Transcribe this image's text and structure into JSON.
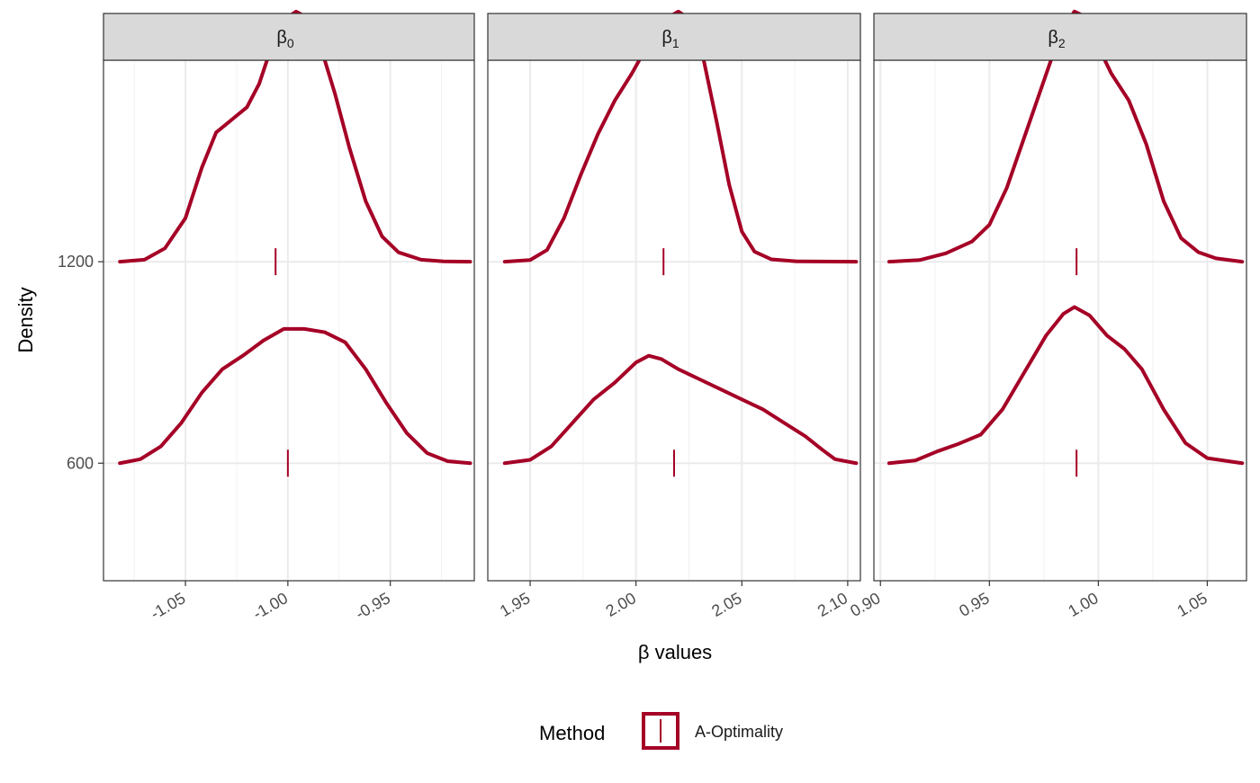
{
  "chart_data": {
    "type": "density-ridgeline",
    "xlabel": "β values",
    "ylabel": "Density",
    "accent_color": "#A50026",
    "legend": {
      "title": "Method",
      "entries": [
        {
          "label": "A-Optimality",
          "color": "#A50026",
          "key": "vline"
        }
      ],
      "position": "bottom"
    },
    "y_ticks": [
      {
        "value": 600,
        "label": "600"
      },
      {
        "value": 1200,
        "label": "1200"
      }
    ],
    "ylim": [
      250,
      1800
    ],
    "grid": true,
    "panels": [
      {
        "strip": "β",
        "strip_sub": "0",
        "xlim": [
          -1.09,
          -0.909
        ],
        "x_ticks": [
          {
            "value": -1.05,
            "label": "-1.05"
          },
          {
            "value": -1.0,
            "label": "-1.00"
          },
          {
            "value": -0.95,
            "label": "-0.95"
          }
        ],
        "x_minor": [
          -1.075,
          -1.025,
          -0.975,
          -0.925
        ],
        "series": [
          {
            "baseline": 1200,
            "marker": -1.006,
            "points": [
              [
                -1.082,
                1200
              ],
              [
                -1.07,
                1206
              ],
              [
                -1.06,
                1240
              ],
              [
                -1.05,
                1330
              ],
              [
                -1.042,
                1480
              ],
              [
                -1.035,
                1585
              ],
              [
                -1.027,
                1625
              ],
              [
                -1.02,
                1660
              ],
              [
                -1.014,
                1730
              ],
              [
                -1.008,
                1840
              ],
              [
                -1.002,
                1920
              ],
              [
                -0.996,
                1945
              ],
              [
                -0.99,
                1925
              ],
              [
                -0.984,
                1840
              ],
              [
                -0.977,
                1700
              ],
              [
                -0.97,
                1540
              ],
              [
                -0.962,
                1380
              ],
              [
                -0.954,
                1275
              ],
              [
                -0.946,
                1228
              ],
              [
                -0.935,
                1206
              ],
              [
                -0.924,
                1201
              ],
              [
                -0.911,
                1200
              ]
            ]
          },
          {
            "baseline": 600,
            "marker": -1.0,
            "points": [
              [
                -1.082,
                600
              ],
              [
                -1.072,
                612
              ],
              [
                -1.062,
                650
              ],
              [
                -1.052,
                720
              ],
              [
                -1.042,
                810
              ],
              [
                -1.032,
                880
              ],
              [
                -1.022,
                920
              ],
              [
                -1.012,
                965
              ],
              [
                -1.002,
                1000
              ],
              [
                -0.992,
                1000
              ],
              [
                -0.982,
                990
              ],
              [
                -0.972,
                960
              ],
              [
                -0.962,
                880
              ],
              [
                -0.952,
                780
              ],
              [
                -0.942,
                690
              ],
              [
                -0.932,
                630
              ],
              [
                -0.922,
                606
              ],
              [
                -0.911,
                600
              ]
            ]
          }
        ]
      },
      {
        "strip": "β",
        "strip_sub": "1",
        "xlim": [
          1.93,
          2.106
        ],
        "x_ticks": [
          {
            "value": 1.95,
            "label": "1.95"
          },
          {
            "value": 2.0,
            "label": "2.00"
          },
          {
            "value": 2.05,
            "label": "2.05"
          },
          {
            "value": 2.1,
            "label": "2.10"
          }
        ],
        "x_minor": [
          1.975,
          2.025,
          2.075
        ],
        "series": [
          {
            "baseline": 1200,
            "marker": 2.013,
            "points": [
              [
                1.938,
                1200
              ],
              [
                1.95,
                1205
              ],
              [
                1.958,
                1235
              ],
              [
                1.966,
                1330
              ],
              [
                1.974,
                1460
              ],
              [
                1.982,
                1580
              ],
              [
                1.99,
                1680
              ],
              [
                1.998,
                1760
              ],
              [
                2.006,
                1850
              ],
              [
                2.013,
                1920
              ],
              [
                2.02,
                1945
              ],
              [
                2.026,
                1920
              ],
              [
                2.032,
                1800
              ],
              [
                2.038,
                1620
              ],
              [
                2.044,
                1430
              ],
              [
                2.05,
                1290
              ],
              [
                2.056,
                1230
              ],
              [
                2.064,
                1207
              ],
              [
                2.076,
                1201
              ],
              [
                2.104,
                1200
              ]
            ]
          },
          {
            "baseline": 600,
            "marker": 2.018,
            "points": [
              [
                1.938,
                600
              ],
              [
                1.95,
                610
              ],
              [
                1.96,
                650
              ],
              [
                1.97,
                720
              ],
              [
                1.98,
                790
              ],
              [
                1.99,
                840
              ],
              [
                2.0,
                900
              ],
              [
                2.006,
                920
              ],
              [
                2.012,
                910
              ],
              [
                2.02,
                880
              ],
              [
                2.03,
                850
              ],
              [
                2.04,
                820
              ],
              [
                2.05,
                790
              ],
              [
                2.06,
                760
              ],
              [
                2.07,
                720
              ],
              [
                2.08,
                680
              ],
              [
                2.088,
                640
              ],
              [
                2.094,
                612
              ],
              [
                2.104,
                600
              ]
            ]
          }
        ]
      },
      {
        "strip": "β",
        "strip_sub": "2",
        "xlim": [
          0.897,
          1.068
        ],
        "x_ticks": [
          {
            "value": 0.9,
            "label": "0.90"
          },
          {
            "value": 0.95,
            "label": "0.95"
          },
          {
            "value": 1.0,
            "label": "1.00"
          },
          {
            "value": 1.05,
            "label": "1.05"
          }
        ],
        "x_minor": [
          0.925,
          0.975,
          1.025
        ],
        "series": [
          {
            "baseline": 1200,
            "marker": 0.99,
            "points": [
              [
                0.904,
                1200
              ],
              [
                0.918,
                1205
              ],
              [
                0.93,
                1225
              ],
              [
                0.942,
                1260
              ],
              [
                0.95,
                1310
              ],
              [
                0.958,
                1420
              ],
              [
                0.966,
                1570
              ],
              [
                0.974,
                1720
              ],
              [
                0.982,
                1870
              ],
              [
                0.989,
                1945
              ],
              [
                0.994,
                1930
              ],
              [
                1.0,
                1840
              ],
              [
                1.006,
                1760
              ],
              [
                1.014,
                1680
              ],
              [
                1.022,
                1550
              ],
              [
                1.03,
                1380
              ],
              [
                1.038,
                1270
              ],
              [
                1.046,
                1228
              ],
              [
                1.054,
                1210
              ],
              [
                1.066,
                1200
              ]
            ]
          },
          {
            "baseline": 600,
            "marker": 0.99,
            "points": [
              [
                0.904,
                600
              ],
              [
                0.916,
                608
              ],
              [
                0.926,
                635
              ],
              [
                0.936,
                658
              ],
              [
                0.946,
                685
              ],
              [
                0.956,
                760
              ],
              [
                0.966,
                870
              ],
              [
                0.976,
                980
              ],
              [
                0.984,
                1045
              ],
              [
                0.989,
                1065
              ],
              [
                0.996,
                1040
              ],
              [
                1.004,
                980
              ],
              [
                1.012,
                940
              ],
              [
                1.02,
                880
              ],
              [
                1.03,
                760
              ],
              [
                1.04,
                660
              ],
              [
                1.05,
                615
              ],
              [
                1.066,
                600
              ]
            ]
          }
        ]
      }
    ]
  }
}
